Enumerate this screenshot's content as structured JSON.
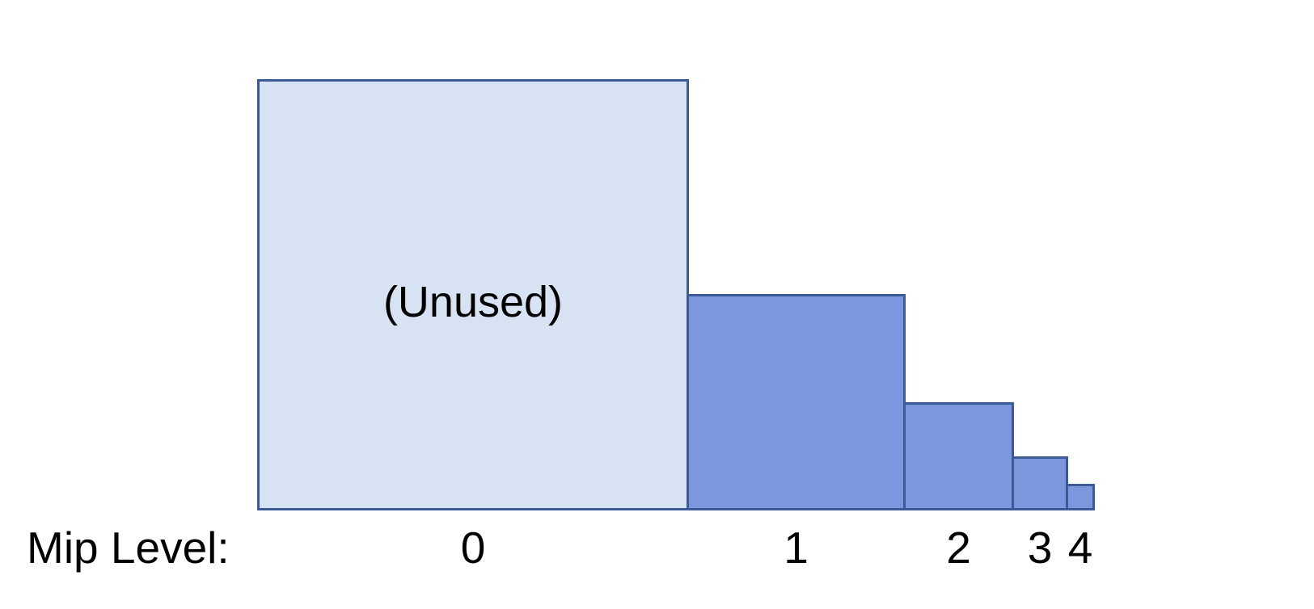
{
  "diagram": {
    "caption": "Mip Level:",
    "unused": "(Unused)",
    "mip_labels": [
      "0",
      "1",
      "2",
      "3",
      "4"
    ],
    "colors": {
      "unused_fill": "#d7e2f3",
      "used_fill": "#7c97de",
      "border": "#3c5a96",
      "text": "#000000",
      "background": "#ffffff"
    }
  }
}
